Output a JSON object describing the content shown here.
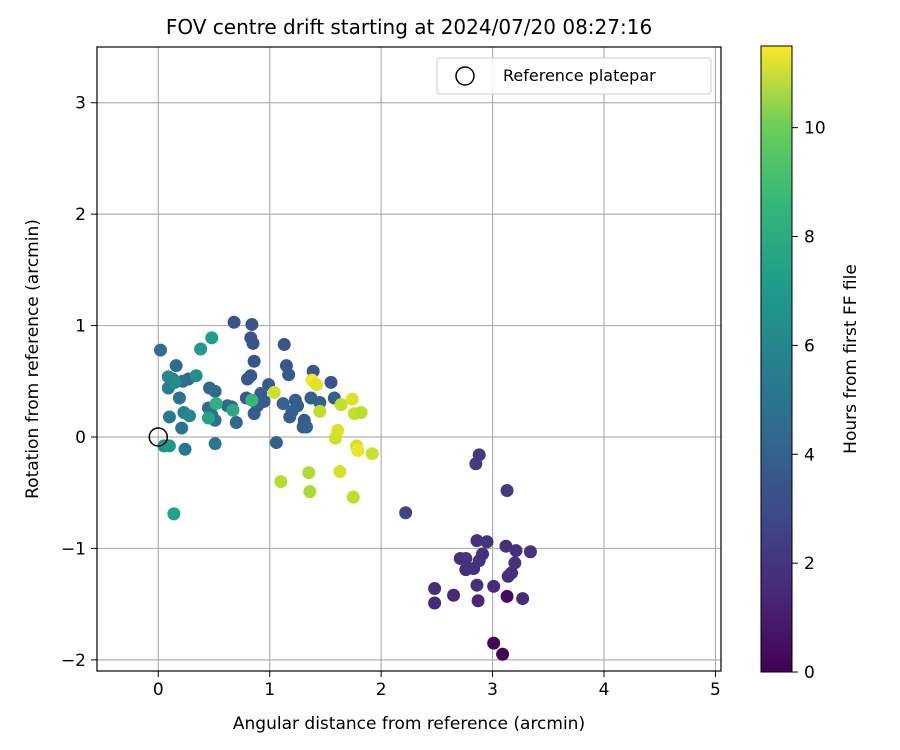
{
  "chart_data": {
    "type": "scatter",
    "title": "FOV centre drift starting at 2024/07/20 08:27:16",
    "xlabel": "Angular distance from reference (arcmin)",
    "ylabel": "Rotation from reference (arcmin)",
    "xlim": [
      -0.55,
      5.05
    ],
    "ylim": [
      -2.1,
      3.5
    ],
    "xticks": [
      "0",
      "1",
      "2",
      "3",
      "4",
      "5"
    ],
    "yticks": [
      "−2",
      "−1",
      "0",
      "1",
      "2",
      "3"
    ],
    "grid": true,
    "legend": {
      "placement": "top-right",
      "entries": [
        "Reference platepar"
      ]
    },
    "colorbar": {
      "label": "Hours from first FF file",
      "range": [
        0,
        11.5
      ],
      "ticks": [
        "0",
        "2",
        "4",
        "6",
        "8",
        "10"
      ],
      "colormap": "viridis"
    },
    "reference_point": {
      "x": 0,
      "y": 0
    },
    "points": [
      {
        "x": 3.09,
        "y": -1.95,
        "h": 0.1
      },
      {
        "x": 3.01,
        "y": -1.85,
        "h": 0.2
      },
      {
        "x": 3.13,
        "y": -1.43,
        "h": 0.4
      },
      {
        "x": 2.48,
        "y": -1.49,
        "h": 1.4
      },
      {
        "x": 2.48,
        "y": -1.36,
        "h": 1.5
      },
      {
        "x": 2.65,
        "y": -1.42,
        "h": 1.4
      },
      {
        "x": 2.87,
        "y": -1.47,
        "h": 1.3
      },
      {
        "x": 2.86,
        "y": -1.33,
        "h": 1.6
      },
      {
        "x": 3.01,
        "y": -1.34,
        "h": 1.4
      },
      {
        "x": 3.27,
        "y": -1.45,
        "h": 1.5
      },
      {
        "x": 3.14,
        "y": -1.25,
        "h": 1.5
      },
      {
        "x": 3.17,
        "y": -1.22,
        "h": 1.6
      },
      {
        "x": 3.2,
        "y": -1.13,
        "h": 1.7
      },
      {
        "x": 3.21,
        "y": -1.02,
        "h": 1.6
      },
      {
        "x": 3.12,
        "y": -0.98,
        "h": 1.6
      },
      {
        "x": 3.34,
        "y": -1.03,
        "h": 1.7
      },
      {
        "x": 2.71,
        "y": -1.09,
        "h": 1.6
      },
      {
        "x": 2.76,
        "y": -1.09,
        "h": 1.7
      },
      {
        "x": 2.76,
        "y": -1.19,
        "h": 1.6
      },
      {
        "x": 2.83,
        "y": -1.18,
        "h": 1.6
      },
      {
        "x": 2.88,
        "y": -1.11,
        "h": 1.7
      },
      {
        "x": 2.91,
        "y": -1.05,
        "h": 1.6
      },
      {
        "x": 2.86,
        "y": -0.93,
        "h": 1.7
      },
      {
        "x": 2.95,
        "y": -0.94,
        "h": 1.8
      },
      {
        "x": 2.85,
        "y": -0.24,
        "h": 2.1
      },
      {
        "x": 2.88,
        "y": -0.16,
        "h": 2.0
      },
      {
        "x": 3.13,
        "y": -0.48,
        "h": 2.0
      },
      {
        "x": 2.22,
        "y": -0.68,
        "h": 2.4
      },
      {
        "x": 0.68,
        "y": 1.03,
        "h": 3.0
      },
      {
        "x": 0.84,
        "y": 1.01,
        "h": 3.0
      },
      {
        "x": 0.83,
        "y": 0.89,
        "h": 3.0
      },
      {
        "x": 0.85,
        "y": 0.84,
        "h": 3.1
      },
      {
        "x": 0.86,
        "y": 0.68,
        "h": 3.0
      },
      {
        "x": 1.13,
        "y": 0.83,
        "h": 3.1
      },
      {
        "x": 1.15,
        "y": 0.64,
        "h": 3.2
      },
      {
        "x": 1.17,
        "y": 0.56,
        "h": 3.2
      },
      {
        "x": 1.39,
        "y": 0.59,
        "h": 3.1
      },
      {
        "x": 1.55,
        "y": 0.49,
        "h": 3.1
      },
      {
        "x": 0.8,
        "y": 0.52,
        "h": 3.2
      },
      {
        "x": 0.83,
        "y": 0.55,
        "h": 3.2
      },
      {
        "x": 0.99,
        "y": 0.47,
        "h": 3.3
      },
      {
        "x": 0.92,
        "y": 0.39,
        "h": 3.3
      },
      {
        "x": 0.95,
        "y": 0.32,
        "h": 3.3
      },
      {
        "x": 0.89,
        "y": 0.28,
        "h": 3.4
      },
      {
        "x": 0.86,
        "y": 0.21,
        "h": 3.4
      },
      {
        "x": 0.79,
        "y": 0.35,
        "h": 3.4
      },
      {
        "x": 1.23,
        "y": 0.33,
        "h": 3.3
      },
      {
        "x": 1.25,
        "y": 0.28,
        "h": 3.4
      },
      {
        "x": 1.37,
        "y": 0.35,
        "h": 3.5
      },
      {
        "x": 1.45,
        "y": 0.31,
        "h": 3.5
      },
      {
        "x": 1.58,
        "y": 0.35,
        "h": 3.5
      },
      {
        "x": 1.2,
        "y": 0.23,
        "h": 3.5
      },
      {
        "x": 1.18,
        "y": 0.18,
        "h": 3.5
      },
      {
        "x": 1.31,
        "y": 0.15,
        "h": 3.4
      },
      {
        "x": 1.3,
        "y": 0.09,
        "h": 3.5
      },
      {
        "x": 1.33,
        "y": 0.09,
        "h": 3.5
      },
      {
        "x": 1.06,
        "y": -0.05,
        "h": 3.5
      },
      {
        "x": 1.12,
        "y": 0.3,
        "h": 3.6
      },
      {
        "x": 0.7,
        "y": 0.13,
        "h": 3.8
      },
      {
        "x": 0.66,
        "y": 0.27,
        "h": 3.8
      },
      {
        "x": 0.62,
        "y": 0.28,
        "h": 3.9
      },
      {
        "x": 0.46,
        "y": 0.44,
        "h": 3.9
      },
      {
        "x": 0.51,
        "y": 0.41,
        "h": 4.0
      },
      {
        "x": 0.27,
        "y": 0.52,
        "h": 4.0
      },
      {
        "x": 0.16,
        "y": 0.64,
        "h": 4.1
      },
      {
        "x": 0.02,
        "y": 0.78,
        "h": 4.2
      },
      {
        "x": 0.22,
        "y": 0.5,
        "h": 4.2
      },
      {
        "x": 0.19,
        "y": 0.35,
        "h": 4.3
      },
      {
        "x": 0.45,
        "y": 0.26,
        "h": 4.3
      },
      {
        "x": 0.48,
        "y": 0.2,
        "h": 4.4
      },
      {
        "x": 0.51,
        "y": 0.15,
        "h": 4.4
      },
      {
        "x": 0.21,
        "y": 0.08,
        "h": 4.4
      },
      {
        "x": 0.24,
        "y": -0.11,
        "h": 4.5
      },
      {
        "x": 0.51,
        "y": -0.06,
        "h": 4.5
      },
      {
        "x": 0.1,
        "y": 0.18,
        "h": 4.6
      },
      {
        "x": 0.13,
        "y": 0.52,
        "h": 4.7
      },
      {
        "x": 0.09,
        "y": 0.44,
        "h": 4.8
      },
      {
        "x": 0.23,
        "y": 0.22,
        "h": 5.0
      },
      {
        "x": 0.28,
        "y": 0.19,
        "h": 5.3
      },
      {
        "x": 0.09,
        "y": 0.54,
        "h": 5.4
      },
      {
        "x": 0.15,
        "y": 0.49,
        "h": 5.6
      },
      {
        "x": 0.34,
        "y": 0.55,
        "h": 5.8
      },
      {
        "x": 0.38,
        "y": 0.79,
        "h": 6.2
      },
      {
        "x": 0.48,
        "y": 0.89,
        "h": 6.4
      },
      {
        "x": 0.05,
        "y": -0.08,
        "h": 6.0
      },
      {
        "x": 0.1,
        "y": -0.08,
        "h": 6.1
      },
      {
        "x": 0.14,
        "y": -0.69,
        "h": 6.6
      },
      {
        "x": 0.45,
        "y": 0.17,
        "h": 6.7
      },
      {
        "x": 0.67,
        "y": 0.24,
        "h": 7.0
      },
      {
        "x": 0.52,
        "y": 0.3,
        "h": 7.3
      },
      {
        "x": 0.84,
        "y": 0.33,
        "h": 7.6
      },
      {
        "x": 1.04,
        "y": 0.4,
        "h": 10.6
      },
      {
        "x": 1.1,
        "y": -0.4,
        "h": 10.2
      },
      {
        "x": 1.35,
        "y": -0.32,
        "h": 10.1
      },
      {
        "x": 1.36,
        "y": -0.49,
        "h": 10.0
      },
      {
        "x": 1.75,
        "y": -0.54,
        "h": 10.4
      },
      {
        "x": 1.38,
        "y": 0.51,
        "h": 11.3
      },
      {
        "x": 1.42,
        "y": 0.47,
        "h": 11.0
      },
      {
        "x": 1.45,
        "y": 0.23,
        "h": 10.4
      },
      {
        "x": 1.64,
        "y": 0.29,
        "h": 10.5
      },
      {
        "x": 1.74,
        "y": 0.34,
        "h": 10.9
      },
      {
        "x": 1.76,
        "y": 0.21,
        "h": 10.5
      },
      {
        "x": 1.82,
        "y": 0.22,
        "h": 10.3
      },
      {
        "x": 1.61,
        "y": 0.06,
        "h": 10.9
      },
      {
        "x": 1.59,
        "y": -0.01,
        "h": 10.7
      },
      {
        "x": 1.63,
        "y": -0.31,
        "h": 10.8
      },
      {
        "x": 1.78,
        "y": -0.08,
        "h": 10.7
      },
      {
        "x": 1.79,
        "y": -0.12,
        "h": 11.2
      },
      {
        "x": 1.92,
        "y": -0.15,
        "h": 10.6
      }
    ]
  }
}
